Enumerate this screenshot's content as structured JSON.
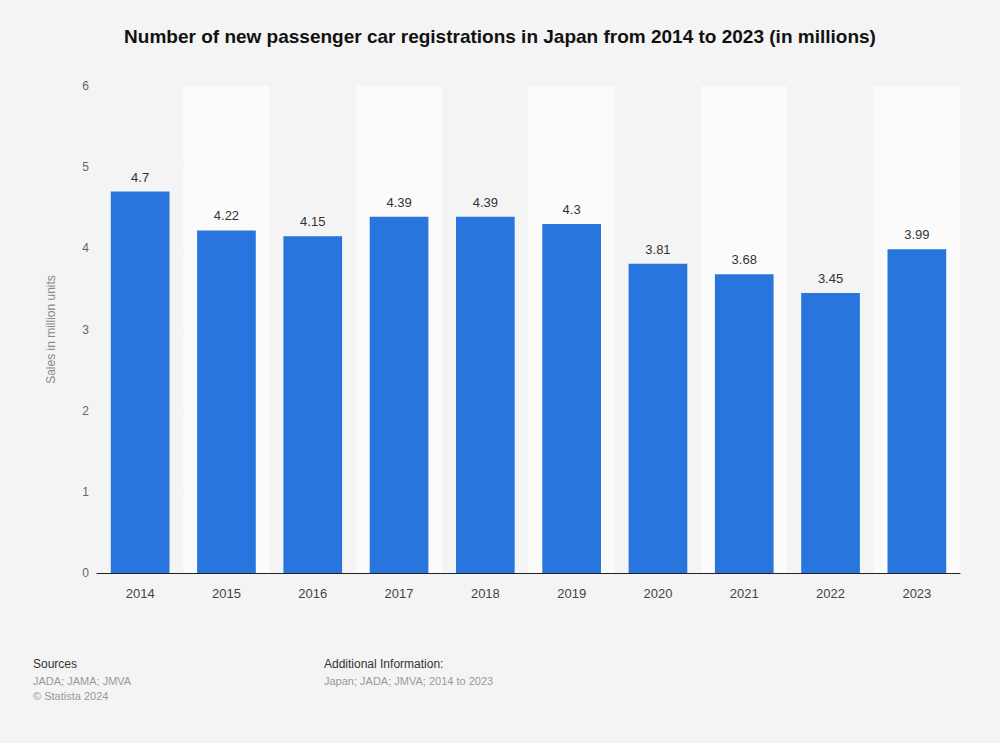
{
  "chart_data": {
    "type": "bar",
    "title": "Number of new passenger car registrations in Japan from 2014 to 2023 (in millions)",
    "y_label": "Sales in million units",
    "categories": [
      "2014",
      "2015",
      "2016",
      "2017",
      "2018",
      "2019",
      "2020",
      "2021",
      "2022",
      "2023"
    ],
    "values": [
      4.7,
      4.22,
      4.15,
      4.39,
      4.39,
      4.3,
      3.81,
      3.68,
      3.45,
      3.99
    ],
    "color": "#2876dd",
    "ylim": [
      0,
      6
    ],
    "yticks": [
      0,
      1,
      2,
      3,
      4,
      5,
      6
    ],
    "grid": true,
    "data_labels": true,
    "annotations": [
      "Sources",
      "JADA; JAMA; JMVA",
      "© Statista 2024",
      "Additional Information:",
      "Japan; JADA; JMVA; 2014 to 2023"
    ]
  }
}
